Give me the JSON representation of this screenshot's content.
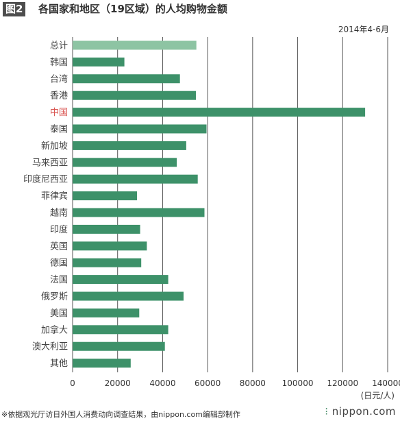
{
  "header": {
    "figure_tag": "图2",
    "title": "各国家和地区（19区域）的人均购物金额"
  },
  "period": "2014年4-6月",
  "unit": "(日元/人)",
  "footer": {
    "note": "※依据观光厅访日外国人消费动向调查结果，由nippon.com编辑部制作",
    "brand": "nippon.com"
  },
  "colors": {
    "bar": "#3d9169",
    "total_bar": "#8dc4a3",
    "highlight_label": "#d9534f",
    "grid": "#555555"
  },
  "chart_data": {
    "type": "bar",
    "orientation": "horizontal",
    "title": "各国家和地区（19区域）的人均购物金额",
    "xlabel": "(日元/人)",
    "ylabel": "",
    "xlim": [
      0,
      140000
    ],
    "xticks": [
      0,
      20000,
      40000,
      60000,
      80000,
      100000,
      120000,
      140000
    ],
    "grid": true,
    "categories": [
      "总计",
      "韩国",
      "台湾",
      "香港",
      "中国",
      "泰国",
      "新加坡",
      "马来西亚",
      "印度尼西亚",
      "菲律宾",
      "越南",
      "印度",
      "英国",
      "德国",
      "法国",
      "俄罗斯",
      "美国",
      "加拿大",
      "澳大利亚",
      "其他"
    ],
    "values": [
      55000,
      23000,
      47700,
      54800,
      130000,
      59500,
      50500,
      46300,
      55600,
      28600,
      58600,
      30000,
      33000,
      30500,
      42500,
      49300,
      29600,
      42500,
      41000,
      25800
    ],
    "highlight": "中国",
    "total_category": "总计"
  }
}
